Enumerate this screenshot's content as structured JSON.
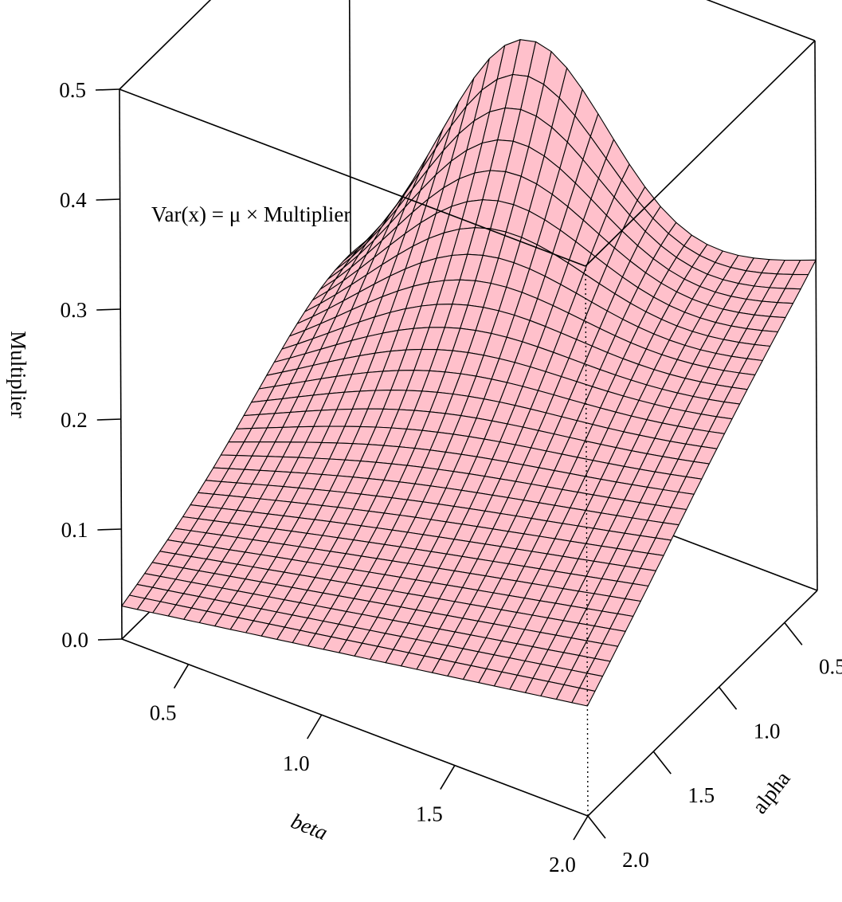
{
  "chart_data": {
    "type": "surface",
    "annotation": "Var(x) = μ × Multiplier",
    "xlabel": "beta",
    "ylabel": "alpha",
    "zlabel": "Multiplier",
    "xlim": [
      0.25,
      2.0
    ],
    "ylim": [
      0.25,
      2.0
    ],
    "zlim": [
      0.0,
      0.5
    ],
    "x_ticks": [
      "0.5",
      "1.0",
      "1.5",
      "2.0"
    ],
    "y_ticks": [
      "0.5",
      "1.0",
      "1.5",
      "2.0"
    ],
    "z_ticks": [
      "0.0",
      "0.1",
      "0.2",
      "0.3",
      "0.4",
      "0.5"
    ],
    "corner_values": [
      {
        "beta": 0.25,
        "alpha": 2.0,
        "multiplier": 0.03
      },
      {
        "beta": 0.25,
        "alpha": 0.25,
        "multiplier": 0.12
      },
      {
        "beta": 2.0,
        "alpha": 0.25,
        "multiplier": 0.3
      },
      {
        "beta": 2.0,
        "alpha": 2.0,
        "multiplier": 0.1
      }
    ],
    "peak": {
      "beta": 0.9,
      "alpha": 0.25,
      "multiplier": 0.4
    },
    "grid_size": [
      30,
      30
    ],
    "grid": false,
    "surface_color": "#ffc0cb",
    "mesh_color": "#000000"
  }
}
